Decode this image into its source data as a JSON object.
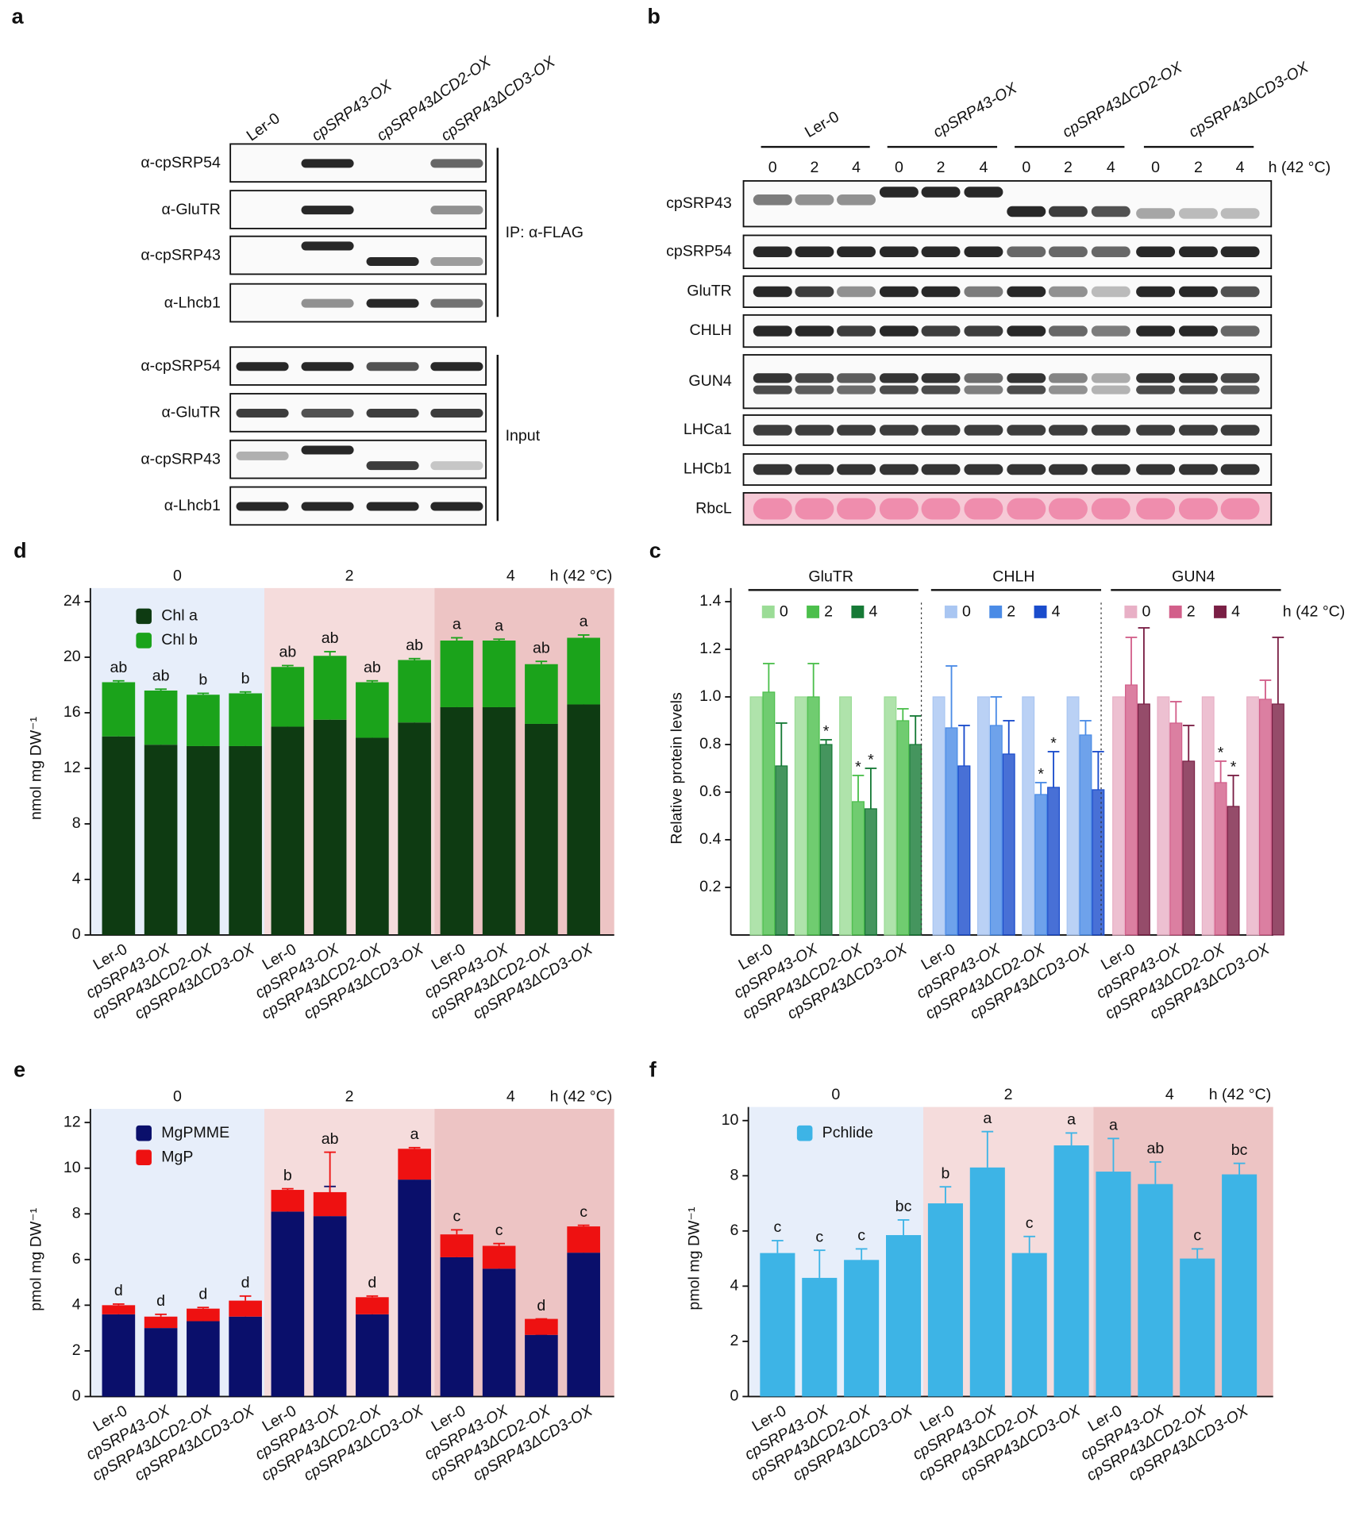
{
  "blots": {
    "a": {
      "label": "a",
      "columns": [
        "Ler-0",
        "cpSRP43-OX",
        "cpSRP43ΔCD2-OX",
        "cpSRP43ΔCD3-OX"
      ],
      "ip_rows": [
        "α-cpSRP54",
        "α-GluTR",
        "α-cpSRP43",
        "α-Lhcb1"
      ],
      "ip_label": "IP: α-FLAG",
      "input_rows": [
        "α-cpSRP54",
        "α-GluTR",
        "α-cpSRP43",
        "α-Lhcb1"
      ],
      "input_label": "Input"
    },
    "b": {
      "label": "b",
      "groups": [
        "Ler-0",
        "cpSRP43-OX",
        "cpSRP43ΔCD2-OX",
        "cpSRP43ΔCD3-OX"
      ],
      "times": [
        "0",
        "2",
        "4"
      ],
      "time_unit": "h (42 °C)",
      "rows": [
        "cpSRP43",
        "cpSRP54",
        "GluTR",
        "CHLH",
        "GUN4",
        "LHCa1",
        "LHCb1",
        "RbcL"
      ]
    }
  },
  "chart_data": [
    {
      "label": "d",
      "type": "stacked_bar",
      "ylabel": "nmol mg DW⁻¹",
      "group_labels": [
        "0",
        "2",
        "4"
      ],
      "unit_label": "h (42 °C)",
      "backgrounds": [
        "#e7eefa",
        "#f5dcdc",
        "#edc4c4"
      ],
      "categories": [
        "Ler-0",
        "cpSRP43-OX",
        "cpSRP43ΔCD2-OX",
        "cpSRP43ΔCD3-OX",
        "Ler-0",
        "cpSRP43-OX",
        "cpSRP43ΔCD2-OX",
        "cpSRP43ΔCD3-OX",
        "Ler-0",
        "cpSRP43-OX",
        "cpSRP43ΔCD2-OX",
        "cpSRP43ΔCD3-OX"
      ],
      "ylim": [
        0,
        24
      ],
      "yticks": [
        0,
        4,
        8,
        12,
        16,
        20,
        24
      ],
      "series": [
        {
          "name": "Chl a",
          "color": "#0e3b12",
          "values": [
            14.3,
            13.7,
            13.6,
            13.6,
            15.0,
            15.5,
            14.2,
            15.3,
            16.4,
            16.4,
            15.2,
            16.6
          ],
          "errors": [
            0.1,
            0.1,
            1.0,
            0.2,
            0.3,
            1.5,
            0.9,
            0.4,
            1.5,
            0.4,
            0.5,
            1.2
          ]
        },
        {
          "name": "Chl b",
          "color": "#1ba31b",
          "values": [
            3.9,
            3.9,
            3.7,
            3.8,
            4.3,
            4.6,
            4.0,
            4.5,
            4.8,
            4.8,
            4.3,
            4.8
          ],
          "errors": [
            0.1,
            0.1,
            0.1,
            0.1,
            0.1,
            0.3,
            0.1,
            0.1,
            0.2,
            0.1,
            0.2,
            0.2
          ]
        }
      ],
      "annotations": [
        "ab",
        "ab",
        "b",
        "b",
        "ab",
        "ab",
        "ab",
        "ab",
        "a",
        "a",
        "ab",
        "a"
      ]
    },
    {
      "label": "c",
      "type": "grouped_bar",
      "ylabel": "Relative protein levels",
      "unit_label": "h (42 °C)",
      "ylim": [
        0,
        1.4
      ],
      "yticks": [
        0.2,
        0.4,
        0.6,
        0.8,
        {
          "value": 1,
          "label": "1.0"
        },
        1.2,
        1.4
      ],
      "groups": [
        {
          "title": "GluTR",
          "categories": [
            "Ler-0",
            "cpSRP43-OX",
            "cpSRP43ΔCD2-OX",
            "cpSRP43ΔCD3-OX"
          ],
          "series": [
            {
              "name": "0",
              "color": "#9bdc96",
              "values": [
                1,
                1,
                1,
                1
              ],
              "errors": [
                0,
                0,
                0,
                0
              ],
              "annotations": [
                null,
                null,
                null,
                null
              ]
            },
            {
              "name": "2",
              "color": "#4cbf4c",
              "values": [
                1.02,
                1.0,
                0.56,
                0.9
              ],
              "errors": [
                0.12,
                0.14,
                0.11,
                0.05
              ],
              "annotations": [
                null,
                null,
                "*",
                null
              ]
            },
            {
              "name": "4",
              "color": "#167a36",
              "values": [
                0.71,
                0.8,
                0.53,
                0.8
              ],
              "errors": [
                0.18,
                0.02,
                0.17,
                0.12
              ],
              "annotations": [
                null,
                "*",
                "*",
                null
              ]
            }
          ]
        },
        {
          "title": "CHLH",
          "categories": [
            "Ler-0",
            "cpSRP43-OX",
            "cpSRP43ΔCD2-OX",
            "cpSRP43ΔCD3-OX"
          ],
          "series": [
            {
              "name": "0",
              "color": "#a9c6f2",
              "values": [
                1,
                1,
                1,
                1
              ],
              "errors": [
                0,
                0,
                0,
                0
              ],
              "annotations": [
                null,
                null,
                null,
                null
              ]
            },
            {
              "name": "2",
              "color": "#4a8be6",
              "values": [
                0.87,
                0.88,
                0.59,
                0.84
              ],
              "errors": [
                0.26,
                0.12,
                0.05,
                0.06
              ],
              "annotations": [
                null,
                null,
                "*",
                null
              ]
            },
            {
              "name": "4",
              "color": "#1a4ccc",
              "values": [
                0.71,
                0.76,
                0.62,
                0.61
              ],
              "errors": [
                0.17,
                0.14,
                0.15,
                0.16
              ],
              "annotations": [
                null,
                null,
                "*",
                null
              ]
            }
          ]
        },
        {
          "title": "GUN4",
          "categories": [
            "Ler-0",
            "cpSRP43-OX",
            "cpSRP43ΔCD2-OX",
            "cpSRP43ΔCD3-OX"
          ],
          "series": [
            {
              "name": "0",
              "color": "#e8b0c6",
              "values": [
                1,
                1,
                1,
                1
              ],
              "errors": [
                0,
                0,
                0,
                0
              ],
              "annotations": [
                null,
                null,
                null,
                null
              ]
            },
            {
              "name": "2",
              "color": "#d25f8a",
              "values": [
                1.05,
                0.89,
                0.64,
                0.99
              ],
              "errors": [
                0.2,
                0.09,
                0.09,
                0.08
              ],
              "annotations": [
                null,
                null,
                "*",
                null
              ]
            },
            {
              "name": "4",
              "color": "#7a1f45",
              "values": [
                0.97,
                0.73,
                0.54,
                0.97
              ],
              "errors": [
                0.32,
                0.15,
                0.13,
                0.28
              ],
              "annotations": [
                null,
                null,
                "*",
                null
              ]
            }
          ]
        }
      ]
    },
    {
      "label": "e",
      "type": "stacked_bar",
      "ylabel": "pmol mg DW⁻¹",
      "group_labels": [
        "0",
        "2",
        "4"
      ],
      "unit_label": "h (42 °C)",
      "backgrounds": [
        "#e7eefa",
        "#f5dcdc",
        "#edc4c4"
      ],
      "categories": [
        "Ler-0",
        "cpSRP43-OX",
        "cpSRP43ΔCD2-OX",
        "cpSRP43ΔCD3-OX",
        "Ler-0",
        "cpSRP43-OX",
        "cpSRP43ΔCD2-OX",
        "cpSRP43ΔCD3-OX",
        "Ler-0",
        "cpSRP43-OX",
        "cpSRP43ΔCD2-OX",
        "cpSRP43ΔCD3-OX"
      ],
      "ylim": [
        0,
        12
      ],
      "yticks": [
        0,
        2,
        4,
        6,
        8,
        10,
        12
      ],
      "series": [
        {
          "name": "MgPMME",
          "color": "#0a0f6b",
          "values": [
            3.6,
            3.0,
            3.3,
            3.5,
            8.1,
            7.9,
            3.6,
            9.5,
            6.1,
            5.6,
            2.7,
            6.3
          ],
          "errors": [
            0.2,
            0.1,
            0.2,
            0.2,
            0.1,
            1.3,
            0.1,
            0.9,
            0.2,
            0.1,
            0,
            0.9
          ]
        },
        {
          "name": "MgP",
          "color": "#ee1111",
          "values": [
            0.4,
            0.5,
            0.55,
            0.7,
            0.95,
            1.05,
            0.75,
            1.35,
            1.0,
            1.0,
            0.7,
            1.15
          ],
          "errors": [
            0.05,
            0.1,
            0.05,
            0.2,
            0.05,
            1.75,
            0.05,
            0.05,
            0.2,
            0.1,
            0,
            0.05
          ]
        }
      ],
      "annotations": [
        "d",
        "d",
        "d",
        "d",
        "b",
        "ab",
        "d",
        "a",
        "c",
        "c",
        "d",
        "c"
      ]
    },
    {
      "label": "f",
      "type": "bar",
      "ylabel": "pmol mg DW⁻¹",
      "group_labels": [
        "0",
        "2",
        "4"
      ],
      "unit_label": "h (42 °C)",
      "backgrounds": [
        "#e7eefa",
        "#f5dcdc",
        "#edc4c4"
      ],
      "categories": [
        "Ler-0",
        "cpSRP43-OX",
        "cpSRP43ΔCD2-OX",
        "cpSRP43ΔCD3-OX",
        "Ler-0",
        "cpSRP43-OX",
        "cpSRP43ΔCD2-OX",
        "cpSRP43ΔCD3-OX",
        "Ler-0",
        "cpSRP43-OX",
        "cpSRP43ΔCD2-OX",
        "cpSRP43ΔCD3-OX"
      ],
      "ylim": [
        0,
        10
      ],
      "yticks": [
        0,
        2,
        4,
        6,
        8,
        10
      ],
      "series": [
        {
          "name": "Pchlide",
          "color": "#3db4e6",
          "values": [
            5.2,
            4.3,
            4.95,
            5.85,
            7.0,
            8.3,
            5.2,
            9.1,
            8.15,
            7.7,
            5.0,
            8.05
          ],
          "errors": [
            0.45,
            1.0,
            0.4,
            0.55,
            0.6,
            1.3,
            0.6,
            0.45,
            1.2,
            0.8,
            0.35,
            0.4
          ]
        }
      ],
      "annotations": [
        "c",
        "c",
        "c",
        "bc",
        "b",
        "a",
        "c",
        "a",
        "a",
        "ab",
        "c",
        "bc"
      ]
    }
  ]
}
